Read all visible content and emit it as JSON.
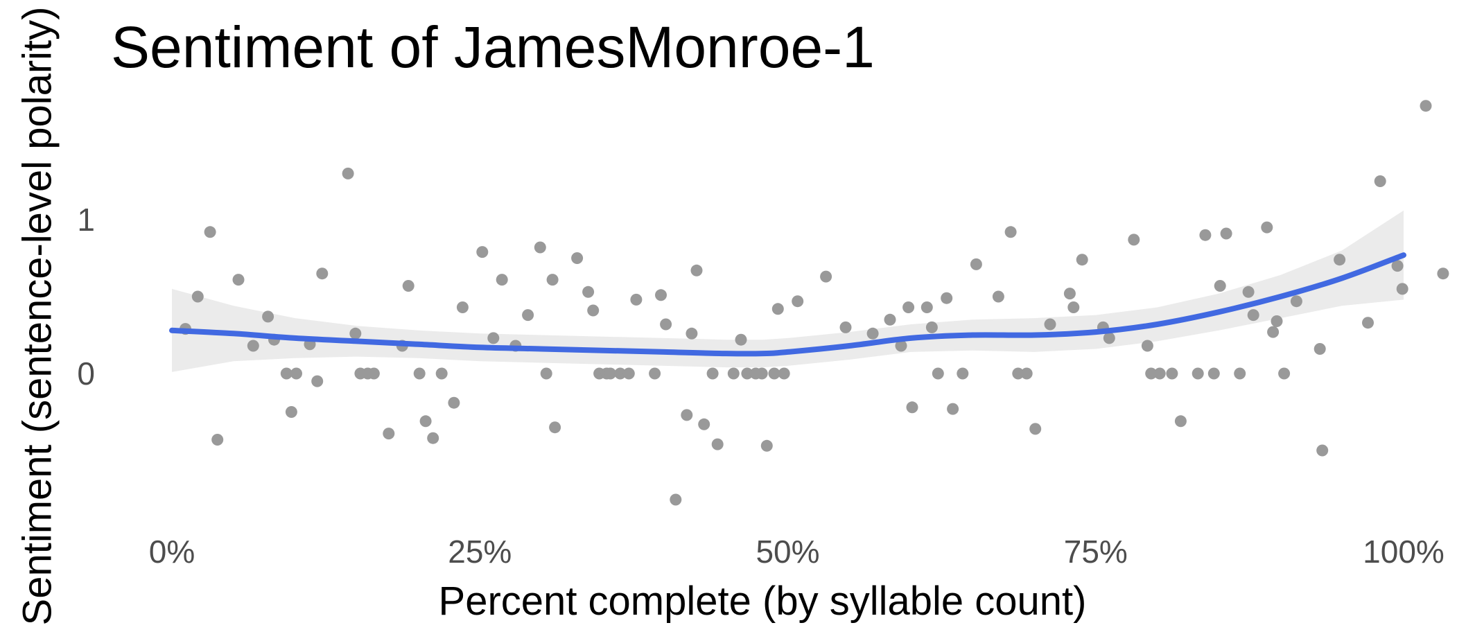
{
  "chart_data": {
    "type": "scatter",
    "title": "Sentiment of JamesMonroe-1",
    "xlabel": "Percent complete (by syllable count)",
    "ylabel": "Sentiment (sentence-level polarity)",
    "xlim": [
      0,
      1
    ],
    "ylim": [
      -0.85,
      1.75
    ],
    "x_ticks": [
      {
        "value": 0.0,
        "label": "0%"
      },
      {
        "value": 0.25,
        "label": "25%"
      },
      {
        "value": 0.5,
        "label": "50%"
      },
      {
        "value": 0.75,
        "label": "75%"
      },
      {
        "value": 1.0,
        "label": "100%"
      }
    ],
    "y_ticks": [
      {
        "value": 0,
        "label": "0"
      },
      {
        "value": 1,
        "label": "1"
      }
    ],
    "grid": false,
    "colors": {
      "points": "#999999",
      "smooth_line": "#4169E1",
      "confidence_band": "#EBEBEB",
      "text": "#000000",
      "ticks": "#4D4D4D"
    },
    "points": [
      {
        "x": 0.011,
        "y": 0.29
      },
      {
        "x": 0.021,
        "y": 0.5
      },
      {
        "x": 0.031,
        "y": 0.92
      },
      {
        "x": 0.037,
        "y": -0.43
      },
      {
        "x": 0.054,
        "y": 0.61
      },
      {
        "x": 0.066,
        "y": 0.18
      },
      {
        "x": 0.078,
        "y": 0.37
      },
      {
        "x": 0.083,
        "y": 0.22
      },
      {
        "x": 0.093,
        "y": 0.0
      },
      {
        "x": 0.097,
        "y": -0.25
      },
      {
        "x": 0.101,
        "y": 0.0
      },
      {
        "x": 0.112,
        "y": 0.19
      },
      {
        "x": 0.118,
        "y": -0.05
      },
      {
        "x": 0.122,
        "y": 0.65
      },
      {
        "x": 0.143,
        "y": 1.3
      },
      {
        "x": 0.149,
        "y": 0.26
      },
      {
        "x": 0.153,
        "y": 0.0
      },
      {
        "x": 0.159,
        "y": 0.0
      },
      {
        "x": 0.164,
        "y": 0.0
      },
      {
        "x": 0.176,
        "y": -0.39
      },
      {
        "x": 0.187,
        "y": 0.18
      },
      {
        "x": 0.192,
        "y": 0.57
      },
      {
        "x": 0.201,
        "y": 0.0
      },
      {
        "x": 0.206,
        "y": -0.31
      },
      {
        "x": 0.212,
        "y": -0.42
      },
      {
        "x": 0.219,
        "y": 0.0
      },
      {
        "x": 0.229,
        "y": -0.19
      },
      {
        "x": 0.236,
        "y": 0.43
      },
      {
        "x": 0.252,
        "y": 0.79
      },
      {
        "x": 0.261,
        "y": 0.23
      },
      {
        "x": 0.268,
        "y": 0.61
      },
      {
        "x": 0.279,
        "y": 0.18
      },
      {
        "x": 0.289,
        "y": 0.38
      },
      {
        "x": 0.299,
        "y": 0.82
      },
      {
        "x": 0.304,
        "y": 0.0
      },
      {
        "x": 0.309,
        "y": 0.61
      },
      {
        "x": 0.311,
        "y": -0.35
      },
      {
        "x": 0.329,
        "y": 0.75
      },
      {
        "x": 0.338,
        "y": 0.53
      },
      {
        "x": 0.342,
        "y": 0.41
      },
      {
        "x": 0.347,
        "y": 0.0
      },
      {
        "x": 0.353,
        "y": 0.0
      },
      {
        "x": 0.356,
        "y": 0.0
      },
      {
        "x": 0.364,
        "y": 0.0
      },
      {
        "x": 0.371,
        "y": 0.0
      },
      {
        "x": 0.377,
        "y": 0.48
      },
      {
        "x": 0.392,
        "y": 0.0
      },
      {
        "x": 0.397,
        "y": 0.51
      },
      {
        "x": 0.401,
        "y": 0.32
      },
      {
        "x": 0.409,
        "y": -0.82
      },
      {
        "x": 0.418,
        "y": -0.27
      },
      {
        "x": 0.422,
        "y": 0.26
      },
      {
        "x": 0.426,
        "y": 0.67
      },
      {
        "x": 0.432,
        "y": -0.33
      },
      {
        "x": 0.439,
        "y": 0.0
      },
      {
        "x": 0.443,
        "y": -0.46
      },
      {
        "x": 0.456,
        "y": 0.0
      },
      {
        "x": 0.462,
        "y": 0.22
      },
      {
        "x": 0.467,
        "y": 0.0
      },
      {
        "x": 0.474,
        "y": 0.0
      },
      {
        "x": 0.479,
        "y": 0.0
      },
      {
        "x": 0.483,
        "y": -0.47
      },
      {
        "x": 0.489,
        "y": 0.0
      },
      {
        "x": 0.492,
        "y": 0.42
      },
      {
        "x": 0.497,
        "y": 0.0
      },
      {
        "x": 0.508,
        "y": 0.47
      },
      {
        "x": 0.531,
        "y": 0.63
      },
      {
        "x": 0.547,
        "y": 0.3
      },
      {
        "x": 0.569,
        "y": 0.26
      },
      {
        "x": 0.583,
        "y": 0.35
      },
      {
        "x": 0.592,
        "y": 0.18
      },
      {
        "x": 0.598,
        "y": 0.43
      },
      {
        "x": 0.601,
        "y": -0.22
      },
      {
        "x": 0.613,
        "y": 0.43
      },
      {
        "x": 0.617,
        "y": 0.3
      },
      {
        "x": 0.622,
        "y": 0.0
      },
      {
        "x": 0.629,
        "y": 0.49
      },
      {
        "x": 0.634,
        "y": -0.23
      },
      {
        "x": 0.642,
        "y": 0.0
      },
      {
        "x": 0.653,
        "y": 0.71
      },
      {
        "x": 0.671,
        "y": 0.5
      },
      {
        "x": 0.681,
        "y": 0.92
      },
      {
        "x": 0.687,
        "y": 0.0
      },
      {
        "x": 0.694,
        "y": 0.0
      },
      {
        "x": 0.701,
        "y": -0.36
      },
      {
        "x": 0.713,
        "y": 0.32
      },
      {
        "x": 0.729,
        "y": 0.52
      },
      {
        "x": 0.732,
        "y": 0.43
      },
      {
        "x": 0.739,
        "y": 0.74
      },
      {
        "x": 0.756,
        "y": 0.3
      },
      {
        "x": 0.761,
        "y": 0.23
      },
      {
        "x": 0.781,
        "y": 0.87
      },
      {
        "x": 0.792,
        "y": 0.18
      },
      {
        "x": 0.795,
        "y": 0.0
      },
      {
        "x": 0.802,
        "y": 0.0
      },
      {
        "x": 0.812,
        "y": 0.0
      },
      {
        "x": 0.819,
        "y": -0.31
      },
      {
        "x": 0.833,
        "y": 0.0
      },
      {
        "x": 0.839,
        "y": 0.9
      },
      {
        "x": 0.846,
        "y": 0.0
      },
      {
        "x": 0.851,
        "y": 0.57
      },
      {
        "x": 0.856,
        "y": 0.91
      },
      {
        "x": 0.867,
        "y": 0.0
      },
      {
        "x": 0.874,
        "y": 0.53
      },
      {
        "x": 0.878,
        "y": 0.38
      },
      {
        "x": 0.889,
        "y": 0.95
      },
      {
        "x": 0.894,
        "y": 0.27
      },
      {
        "x": 0.897,
        "y": 0.34
      },
      {
        "x": 0.903,
        "y": 0.0
      },
      {
        "x": 0.913,
        "y": 0.47
      },
      {
        "x": 0.932,
        "y": 0.16
      },
      {
        "x": 0.934,
        "y": -0.5
      },
      {
        "x": 0.948,
        "y": 0.74
      },
      {
        "x": 0.971,
        "y": 0.33
      },
      {
        "x": 0.981,
        "y": 1.25
      },
      {
        "x": 0.995,
        "y": 0.7
      },
      {
        "x": 0.999,
        "y": 0.55
      },
      {
        "x": 1.018,
        "y": 1.74
      },
      {
        "x": 1.032,
        "y": 0.65
      }
    ],
    "smooth_line": {
      "x": [
        0.0,
        0.05,
        0.1,
        0.15,
        0.2,
        0.25,
        0.3,
        0.35,
        0.4,
        0.45,
        0.48,
        0.5,
        0.55,
        0.6,
        0.65,
        0.7,
        0.75,
        0.8,
        0.85,
        0.9,
        0.95,
        1.0
      ],
      "y": [
        0.28,
        0.26,
        0.23,
        0.21,
        0.19,
        0.17,
        0.16,
        0.15,
        0.14,
        0.13,
        0.13,
        0.14,
        0.18,
        0.23,
        0.25,
        0.25,
        0.27,
        0.32,
        0.4,
        0.5,
        0.62,
        0.77
      ],
      "ci_upper": [
        0.55,
        0.44,
        0.36,
        0.31,
        0.28,
        0.26,
        0.25,
        0.24,
        0.23,
        0.22,
        0.22,
        0.23,
        0.27,
        0.32,
        0.35,
        0.36,
        0.38,
        0.43,
        0.52,
        0.64,
        0.8,
        1.06
      ],
      "ci_lower": [
        0.01,
        0.08,
        0.1,
        0.11,
        0.1,
        0.08,
        0.07,
        0.06,
        0.05,
        0.04,
        0.04,
        0.05,
        0.09,
        0.14,
        0.15,
        0.14,
        0.16,
        0.21,
        0.28,
        0.36,
        0.44,
        0.48
      ]
    }
  }
}
